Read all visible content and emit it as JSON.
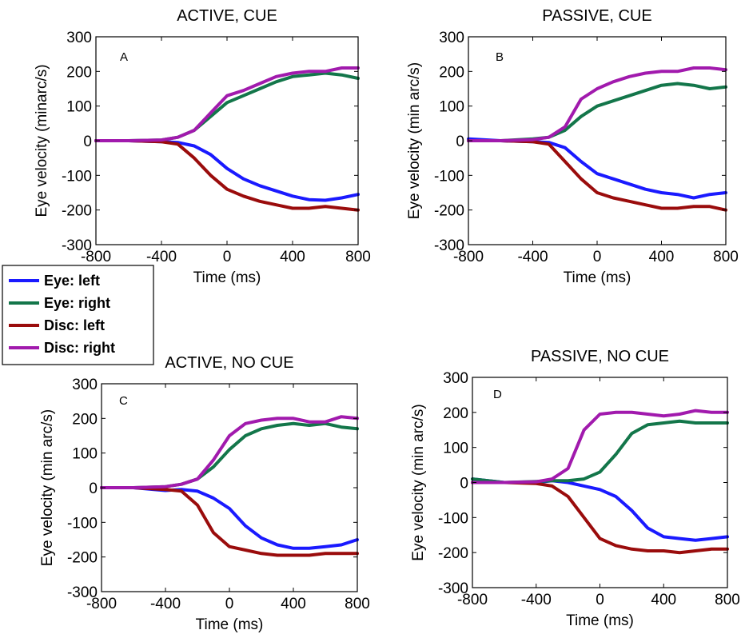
{
  "legend": [
    {
      "label": "Eye: left",
      "color": "#1a1aff"
    },
    {
      "label": "Eye: right",
      "color": "#13764a"
    },
    {
      "label": "Disc: left",
      "color": "#9a0c0c"
    },
    {
      "label": "Disc: right",
      "color": "#a11aad"
    }
  ],
  "chart_data": [
    {
      "type": "line",
      "panel": "A",
      "title": "ACTIVE, CUE",
      "xlabel": "Time (ms)",
      "ylabel": "Eye velocity (minarc/s)",
      "xlim": [
        -800,
        800
      ],
      "ylim": [
        -300,
        300
      ],
      "xticks": [
        -800,
        -400,
        0,
        400,
        800
      ],
      "yticks": [
        300,
        200,
        100,
        0,
        -100,
        -200,
        -300
      ],
      "grid": false,
      "x": [
        -800,
        -600,
        -400,
        -300,
        -200,
        -100,
        0,
        100,
        200,
        300,
        400,
        500,
        600,
        700,
        800
      ],
      "series": [
        {
          "name": "Eye: left",
          "values": [
            0,
            0,
            -3,
            -5,
            -15,
            -40,
            -80,
            -110,
            -130,
            -145,
            -160,
            -170,
            -172,
            -165,
            -155
          ]
        },
        {
          "name": "Eye: right",
          "values": [
            0,
            0,
            2,
            10,
            30,
            70,
            110,
            130,
            150,
            170,
            185,
            190,
            195,
            190,
            180
          ]
        },
        {
          "name": "Disc: left",
          "values": [
            0,
            0,
            -3,
            -10,
            -50,
            -100,
            -140,
            -160,
            -175,
            -185,
            -195,
            -195,
            -190,
            -195,
            -200
          ]
        },
        {
          "name": "Disc: right",
          "values": [
            0,
            0,
            2,
            10,
            30,
            80,
            130,
            145,
            165,
            185,
            195,
            200,
            200,
            210,
            210
          ]
        }
      ]
    },
    {
      "type": "line",
      "panel": "B",
      "title": "PASSIVE, CUE",
      "xlabel": "Time (ms)",
      "ylabel": "Eye velocity (min arc/s)",
      "xlim": [
        -800,
        800
      ],
      "ylim": [
        -300,
        300
      ],
      "xticks": [
        -800,
        -400,
        0,
        400,
        800
      ],
      "yticks": [
        300,
        200,
        100,
        0,
        -100,
        -200,
        -300
      ],
      "grid": false,
      "x": [
        -800,
        -600,
        -400,
        -300,
        -200,
        -100,
        0,
        100,
        200,
        300,
        400,
        500,
        600,
        700,
        800
      ],
      "series": [
        {
          "name": "Eye: left",
          "values": [
            5,
            0,
            -3,
            -5,
            -20,
            -60,
            -95,
            -110,
            -125,
            -140,
            -150,
            -155,
            -165,
            -155,
            -150
          ]
        },
        {
          "name": "Eye: right",
          "values": [
            0,
            0,
            5,
            10,
            30,
            70,
            100,
            115,
            130,
            145,
            160,
            165,
            160,
            150,
            155
          ]
        },
        {
          "name": "Disc: left",
          "values": [
            0,
            0,
            -3,
            -10,
            -60,
            -110,
            -150,
            -165,
            -175,
            -185,
            -195,
            -195,
            -190,
            -190,
            -200
          ]
        },
        {
          "name": "Disc: right",
          "values": [
            0,
            0,
            3,
            10,
            40,
            120,
            150,
            170,
            185,
            195,
            200,
            200,
            210,
            210,
            205
          ]
        }
      ]
    },
    {
      "type": "line",
      "panel": "C",
      "title": "ACTIVE, NO CUE",
      "xlabel": "Time (ms)",
      "ylabel": "Eye velocity (min arc/s)",
      "xlim": [
        -800,
        800
      ],
      "ylim": [
        -300,
        300
      ],
      "xticks": [
        -800,
        -400,
        0,
        400,
        800
      ],
      "yticks": [
        300,
        200,
        100,
        0,
        -100,
        -200,
        -300
      ],
      "grid": false,
      "x": [
        -800,
        -600,
        -400,
        -300,
        -200,
        -100,
        0,
        100,
        200,
        300,
        400,
        500,
        600,
        700,
        800
      ],
      "series": [
        {
          "name": "Eye: left",
          "values": [
            0,
            0,
            -8,
            -5,
            -10,
            -30,
            -60,
            -110,
            -145,
            -165,
            -175,
            -175,
            -170,
            -165,
            -150
          ]
        },
        {
          "name": "Eye: right",
          "values": [
            0,
            0,
            3,
            10,
            25,
            60,
            110,
            150,
            170,
            180,
            185,
            180,
            185,
            175,
            170
          ]
        },
        {
          "name": "Disc: left",
          "values": [
            0,
            0,
            -5,
            -10,
            -50,
            -130,
            -170,
            -180,
            -190,
            -195,
            -195,
            -195,
            -190,
            -190,
            -190
          ]
        },
        {
          "name": "Disc: right",
          "values": [
            0,
            0,
            3,
            10,
            25,
            80,
            150,
            185,
            195,
            200,
            200,
            190,
            190,
            205,
            200
          ]
        }
      ]
    },
    {
      "type": "line",
      "panel": "D",
      "title": "PASSIVE, NO CUE",
      "xlabel": "Time (ms)",
      "ylabel": "Eye velocity (min arc/s)",
      "xlim": [
        -800,
        800
      ],
      "ylim": [
        -300,
        300
      ],
      "xticks": [
        -800,
        -400,
        0,
        400,
        800
      ],
      "yticks": [
        300,
        200,
        100,
        0,
        -100,
        -200,
        -300
      ],
      "grid": false,
      "x": [
        -800,
        -600,
        -400,
        -300,
        -200,
        -100,
        0,
        100,
        200,
        300,
        400,
        500,
        600,
        700,
        800
      ],
      "series": [
        {
          "name": "Eye: left",
          "values": [
            10,
            0,
            0,
            5,
            0,
            -10,
            -20,
            -40,
            -80,
            -130,
            -155,
            -160,
            -165,
            -160,
            -155
          ]
        },
        {
          "name": "Eye: right",
          "values": [
            10,
            0,
            3,
            5,
            5,
            10,
            30,
            80,
            140,
            165,
            170,
            175,
            170,
            170,
            170
          ]
        },
        {
          "name": "Disc: left",
          "values": [
            0,
            0,
            -3,
            -10,
            -40,
            -100,
            -160,
            -180,
            -190,
            -195,
            -195,
            -200,
            -195,
            -190,
            -190
          ]
        },
        {
          "name": "Disc: right",
          "values": [
            0,
            0,
            2,
            10,
            40,
            150,
            195,
            200,
            200,
            195,
            190,
            195,
            205,
            200,
            200
          ]
        }
      ]
    }
  ]
}
